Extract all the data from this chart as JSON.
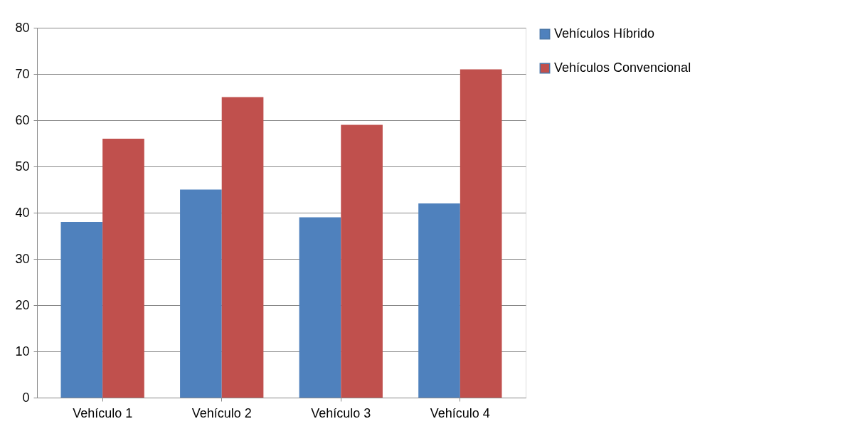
{
  "chart_data": {
    "type": "bar",
    "categories": [
      "Vehículo 1",
      "Vehículo 2",
      "Vehículo 3",
      "Vehículo 4"
    ],
    "series": [
      {
        "name": "Vehículos Híbrido",
        "color": "#4f81bd",
        "values": [
          38,
          45,
          39,
          42
        ]
      },
      {
        "name": "Vehículos Convencional",
        "color": "#c0504d",
        "values": [
          56,
          65,
          59,
          71
        ]
      }
    ],
    "ylim": [
      0,
      80
    ],
    "yticks": [
      0,
      10,
      20,
      30,
      40,
      50,
      60,
      70,
      80
    ],
    "grid": "y",
    "legend": "right"
  }
}
